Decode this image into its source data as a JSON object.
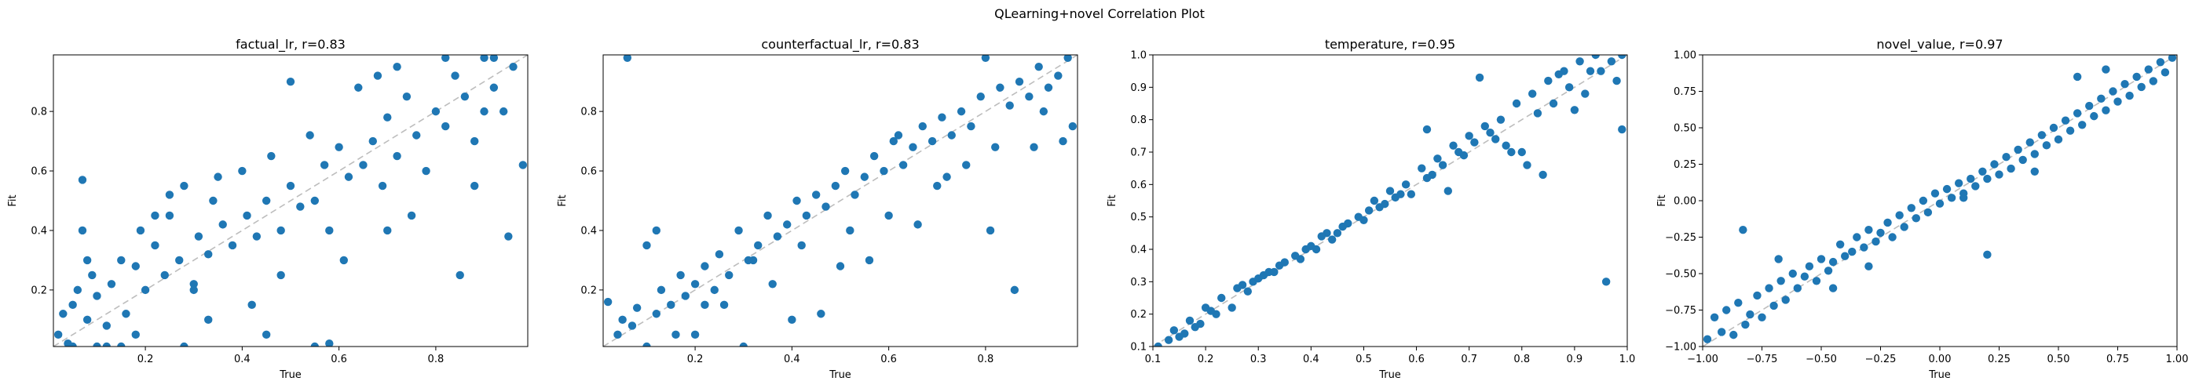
{
  "suptitle": "QLearning+novel Correlation Plot",
  "chart_data": [
    {
      "type": "scatter",
      "title": "factual_lr, r=0.83",
      "xlabel": "True",
      "ylabel": "Fit",
      "xlim": [
        0.01,
        0.99
      ],
      "ylim": [
        0.01,
        0.99
      ],
      "xticks": [
        0.2,
        0.4,
        0.6,
        0.8
      ],
      "yticks": [
        0.2,
        0.4,
        0.6,
        0.8
      ],
      "tick_labels": [
        "0.2",
        "0.4",
        "0.6",
        "0.8"
      ],
      "identity_line": true,
      "marker_color": "#1f77b4",
      "points": {
        "x": [
          0.02,
          0.03,
          0.04,
          0.05,
          0.06,
          0.07,
          0.08,
          0.09,
          0.1,
          0.12,
          0.13,
          0.15,
          0.16,
          0.18,
          0.19,
          0.2,
          0.22,
          0.24,
          0.25,
          0.27,
          0.28,
          0.3,
          0.31,
          0.33,
          0.34,
          0.36,
          0.38,
          0.4,
          0.41,
          0.43,
          0.45,
          0.46,
          0.48,
          0.5,
          0.52,
          0.54,
          0.55,
          0.57,
          0.58,
          0.6,
          0.62,
          0.64,
          0.65,
          0.67,
          0.69,
          0.7,
          0.72,
          0.74,
          0.76,
          0.78,
          0.8,
          0.82,
          0.84,
          0.86,
          0.88,
          0.9,
          0.92,
          0.94,
          0.96,
          0.98,
          0.05,
          0.08,
          0.12,
          0.18,
          0.22,
          0.28,
          0.35,
          0.42,
          0.48,
          0.55,
          0.61,
          0.68,
          0.75,
          0.82,
          0.88,
          0.95,
          0.07,
          0.15,
          0.25,
          0.33,
          0.45,
          0.58,
          0.72,
          0.85,
          0.92,
          0.1,
          0.3,
          0.5,
          0.7,
          0.9
        ],
        "y": [
          0.05,
          0.12,
          0.02,
          0.15,
          0.2,
          0.57,
          0.1,
          0.25,
          0.18,
          0.08,
          0.22,
          0.3,
          0.12,
          0.28,
          0.4,
          0.2,
          0.35,
          0.25,
          0.45,
          0.3,
          0.55,
          0.22,
          0.38,
          0.32,
          0.5,
          0.42,
          0.35,
          0.6,
          0.45,
          0.38,
          0.5,
          0.65,
          0.4,
          0.55,
          0.48,
          0.72,
          0.5,
          0.62,
          0.4,
          0.68,
          0.58,
          0.88,
          0.62,
          0.7,
          0.55,
          0.78,
          0.65,
          0.85,
          0.72,
          0.6,
          0.8,
          0.75,
          0.92,
          0.85,
          0.7,
          0.98,
          0.88,
          0.8,
          0.95,
          0.62,
          0.01,
          0.3,
          0.01,
          0.05,
          0.45,
          0.01,
          0.58,
          0.15,
          0.25,
          0.01,
          0.3,
          0.92,
          0.45,
          0.98,
          0.55,
          0.38,
          0.4,
          0.01,
          0.52,
          0.1,
          0.05,
          0.02,
          0.95,
          0.25,
          0.98,
          0.01,
          0.2,
          0.9,
          0.4,
          0.8
        ]
      }
    },
    {
      "type": "scatter",
      "title": "counterfactual_lr, r=0.83",
      "xlabel": "True",
      "ylabel": "Fit",
      "xlim": [
        0.01,
        0.99
      ],
      "ylim": [
        0.01,
        0.99
      ],
      "xticks": [
        0.2,
        0.4,
        0.6,
        0.8
      ],
      "yticks": [
        0.2,
        0.4,
        0.6,
        0.8
      ],
      "tick_labels": [
        "0.2",
        "0.4",
        "0.6",
        "0.8"
      ],
      "identity_line": true,
      "marker_color": "#1f77b4",
      "points": {
        "x": [
          0.02,
          0.04,
          0.05,
          0.07,
          0.08,
          0.1,
          0.12,
          0.13,
          0.15,
          0.17,
          0.18,
          0.2,
          0.22,
          0.24,
          0.25,
          0.27,
          0.29,
          0.31,
          0.33,
          0.35,
          0.37,
          0.39,
          0.41,
          0.43,
          0.45,
          0.47,
          0.49,
          0.51,
          0.53,
          0.55,
          0.57,
          0.59,
          0.61,
          0.63,
          0.65,
          0.67,
          0.69,
          0.71,
          0.73,
          0.75,
          0.77,
          0.79,
          0.81,
          0.83,
          0.85,
          0.87,
          0.89,
          0.91,
          0.93,
          0.95,
          0.97,
          0.98,
          0.1,
          0.2,
          0.3,
          0.4,
          0.5,
          0.6,
          0.7,
          0.8,
          0.9,
          0.06,
          0.16,
          0.26,
          0.36,
          0.46,
          0.56,
          0.66,
          0.76,
          0.86,
          0.96,
          0.12,
          0.32,
          0.52,
          0.72,
          0.92,
          0.22,
          0.42,
          0.62,
          0.82
        ],
        "y": [
          0.16,
          0.05,
          0.1,
          0.08,
          0.14,
          0.35,
          0.12,
          0.2,
          0.15,
          0.25,
          0.18,
          0.22,
          0.28,
          0.2,
          0.32,
          0.25,
          0.4,
          0.3,
          0.35,
          0.45,
          0.38,
          0.42,
          0.5,
          0.45,
          0.52,
          0.48,
          0.55,
          0.6,
          0.52,
          0.58,
          0.65,
          0.6,
          0.7,
          0.62,
          0.68,
          0.75,
          0.7,
          0.78,
          0.72,
          0.8,
          0.75,
          0.85,
          0.4,
          0.88,
          0.82,
          0.9,
          0.85,
          0.95,
          0.88,
          0.92,
          0.98,
          0.75,
          0.01,
          0.05,
          0.01,
          0.1,
          0.28,
          0.45,
          0.55,
          0.98,
          0.68,
          0.98,
          0.05,
          0.15,
          0.22,
          0.12,
          0.3,
          0.42,
          0.62,
          0.2,
          0.7,
          0.4,
          0.3,
          0.4,
          0.58,
          0.8,
          0.15,
          0.35,
          0.72,
          0.68
        ]
      }
    },
    {
      "type": "scatter",
      "title": "temperature, r=0.95",
      "xlabel": "True",
      "ylabel": "Fit",
      "xlim": [
        0.1,
        1.0
      ],
      "ylim": [
        0.1,
        1.0
      ],
      "xticks": [
        0.1,
        0.2,
        0.3,
        0.4,
        0.5,
        0.6,
        0.7,
        0.8,
        0.9,
        1.0
      ],
      "yticks": [
        0.1,
        0.2,
        0.3,
        0.4,
        0.5,
        0.6,
        0.7,
        0.8,
        0.9,
        1.0
      ],
      "tick_labels": [
        "0.1",
        "0.2",
        "0.3",
        "0.4",
        "0.5",
        "0.6",
        "0.7",
        "0.8",
        "0.9",
        "1.0"
      ],
      "identity_line": true,
      "marker_color": "#1f77b4",
      "points": {
        "x": [
          0.11,
          0.13,
          0.14,
          0.16,
          0.17,
          0.19,
          0.2,
          0.22,
          0.23,
          0.25,
          0.26,
          0.28,
          0.29,
          0.31,
          0.32,
          0.34,
          0.35,
          0.37,
          0.38,
          0.4,
          0.41,
          0.43,
          0.44,
          0.46,
          0.47,
          0.49,
          0.5,
          0.52,
          0.53,
          0.55,
          0.56,
          0.58,
          0.59,
          0.61,
          0.62,
          0.64,
          0.65,
          0.67,
          0.68,
          0.7,
          0.71,
          0.73,
          0.74,
          0.76,
          0.77,
          0.79,
          0.8,
          0.82,
          0.83,
          0.85,
          0.86,
          0.88,
          0.89,
          0.91,
          0.92,
          0.94,
          0.95,
          0.97,
          0.98,
          0.99,
          0.15,
          0.21,
          0.27,
          0.33,
          0.39,
          0.45,
          0.51,
          0.57,
          0.63,
          0.69,
          0.75,
          0.81,
          0.87,
          0.93,
          0.96,
          0.18,
          0.3,
          0.42,
          0.54,
          0.66,
          0.78,
          0.9,
          0.99,
          0.62,
          0.72,
          0.84
        ],
        "y": [
          0.1,
          0.12,
          0.15,
          0.14,
          0.18,
          0.17,
          0.22,
          0.2,
          0.25,
          0.22,
          0.28,
          0.27,
          0.3,
          0.32,
          0.33,
          0.35,
          0.36,
          0.38,
          0.37,
          0.41,
          0.4,
          0.45,
          0.43,
          0.47,
          0.48,
          0.5,
          0.49,
          0.55,
          0.53,
          0.58,
          0.56,
          0.6,
          0.57,
          0.65,
          0.62,
          0.68,
          0.66,
          0.72,
          0.7,
          0.75,
          0.73,
          0.78,
          0.76,
          0.8,
          0.72,
          0.85,
          0.7,
          0.88,
          0.82,
          0.92,
          0.85,
          0.95,
          0.9,
          0.98,
          0.88,
          1.0,
          0.95,
          0.98,
          0.92,
          0.77,
          0.13,
          0.21,
          0.29,
          0.33,
          0.4,
          0.45,
          0.52,
          0.57,
          0.63,
          0.69,
          0.74,
          0.66,
          0.94,
          0.95,
          0.3,
          0.16,
          0.31,
          0.44,
          0.54,
          0.58,
          0.7,
          0.83,
          1.0,
          0.77,
          0.93,
          0.63
        ]
      }
    },
    {
      "type": "scatter",
      "title": "novel_value, r=0.97",
      "xlabel": "True",
      "ylabel": "Fit",
      "xlim": [
        -1.0,
        1.0
      ],
      "ylim": [
        -1.0,
        1.0
      ],
      "xticks": [
        -1.0,
        -0.75,
        -0.5,
        -0.25,
        0.0,
        0.25,
        0.5,
        0.75,
        1.0
      ],
      "yticks": [
        -1.0,
        -0.75,
        -0.5,
        -0.25,
        0.0,
        0.25,
        0.5,
        0.75,
        1.0
      ],
      "tick_labels": [
        "−1.00",
        "−0.75",
        "−0.50",
        "−0.25",
        "0.00",
        "0.25",
        "0.50",
        "0.75",
        "1.00"
      ],
      "identity_line": true,
      "marker_color": "#1f77b4",
      "points": {
        "x": [
          -0.98,
          -0.95,
          -0.92,
          -0.9,
          -0.87,
          -0.85,
          -0.82,
          -0.8,
          -0.77,
          -0.75,
          -0.72,
          -0.7,
          -0.67,
          -0.65,
          -0.62,
          -0.6,
          -0.57,
          -0.55,
          -0.52,
          -0.5,
          -0.47,
          -0.45,
          -0.42,
          -0.4,
          -0.37,
          -0.35,
          -0.32,
          -0.3,
          -0.27,
          -0.25,
          -0.22,
          -0.2,
          -0.17,
          -0.15,
          -0.12,
          -0.1,
          -0.07,
          -0.05,
          -0.02,
          0.0,
          0.03,
          0.05,
          0.08,
          0.1,
          0.13,
          0.15,
          0.18,
          0.2,
          0.23,
          0.25,
          0.28,
          0.3,
          0.33,
          0.35,
          0.38,
          0.4,
          0.43,
          0.45,
          0.48,
          0.5,
          0.53,
          0.55,
          0.58,
          0.6,
          0.63,
          0.65,
          0.68,
          0.7,
          0.73,
          0.75,
          0.78,
          0.8,
          0.83,
          0.85,
          0.88,
          0.9,
          0.93,
          0.95,
          0.98,
          -0.83,
          -0.68,
          0.2,
          -0.45,
          0.4,
          0.7,
          -0.3,
          0.1,
          0.58
        ],
        "y": [
          -0.95,
          -0.8,
          -0.9,
          -0.75,
          -0.92,
          -0.7,
          -0.85,
          -0.78,
          -0.65,
          -0.8,
          -0.6,
          -0.72,
          -0.55,
          -0.68,
          -0.5,
          -0.6,
          -0.52,
          -0.45,
          -0.55,
          -0.4,
          -0.48,
          -0.42,
          -0.3,
          -0.38,
          -0.35,
          -0.25,
          -0.32,
          -0.2,
          -0.28,
          -0.22,
          -0.15,
          -0.25,
          -0.1,
          -0.18,
          -0.05,
          -0.12,
          0.0,
          -0.08,
          0.05,
          -0.02,
          0.08,
          0.02,
          0.12,
          0.05,
          0.15,
          0.1,
          0.2,
          0.15,
          0.25,
          0.18,
          0.3,
          0.22,
          0.35,
          0.28,
          0.4,
          0.32,
          0.45,
          0.38,
          0.5,
          0.42,
          0.55,
          0.48,
          0.6,
          0.52,
          0.65,
          0.58,
          0.7,
          0.62,
          0.75,
          0.68,
          0.8,
          0.72,
          0.85,
          0.78,
          0.9,
          0.82,
          0.95,
          0.88,
          0.98,
          -0.2,
          -0.4,
          -0.37,
          -0.6,
          0.2,
          0.9,
          -0.45,
          0.02,
          0.85
        ]
      }
    }
  ]
}
